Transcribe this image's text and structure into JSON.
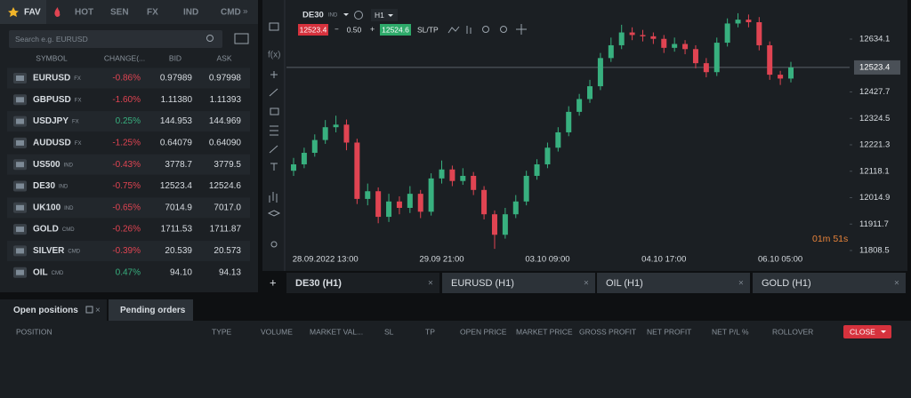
{
  "tabs": [
    "FAV",
    "HOT",
    "SEN",
    "FX",
    "IND",
    "CMD"
  ],
  "search_placeholder": "Search e.g. EURUSD",
  "watchlist": {
    "headers": [
      "SYMBOL",
      "CHANGE(...",
      "BID",
      "ASK"
    ],
    "rows": [
      {
        "symbol": "EURUSD",
        "kind": "FX",
        "change": "-0.86%",
        "bid": "0.97989",
        "ask": "0.97998"
      },
      {
        "symbol": "GBPUSD",
        "kind": "FX",
        "change": "-1.60%",
        "bid": "1.11380",
        "ask": "1.11393"
      },
      {
        "symbol": "USDJPY",
        "kind": "FX",
        "change": "0.25%",
        "bid": "144.953",
        "ask": "144.969"
      },
      {
        "symbol": "AUDUSD",
        "kind": "FX",
        "change": "-1.25%",
        "bid": "0.64079",
        "ask": "0.64090"
      },
      {
        "symbol": "US500",
        "kind": "IND",
        "change": "-0.43%",
        "bid": "3778.7",
        "ask": "3779.5"
      },
      {
        "symbol": "DE30",
        "kind": "IND",
        "change": "-0.75%",
        "bid": "12523.4",
        "ask": "12524.6"
      },
      {
        "symbol": "UK100",
        "kind": "IND",
        "change": "-0.65%",
        "bid": "7014.9",
        "ask": "7017.0"
      },
      {
        "symbol": "GOLD",
        "kind": "CMD",
        "change": "-0.26%",
        "bid": "1711.53",
        "ask": "1711.87"
      },
      {
        "symbol": "SILVER",
        "kind": "CMD",
        "change": "-0.39%",
        "bid": "20.539",
        "ask": "20.573"
      },
      {
        "symbol": "OIL",
        "kind": "CMD",
        "change": "0.47%",
        "bid": "94.10",
        "ask": "94.13"
      }
    ]
  },
  "instrument": {
    "symbol": "DE30",
    "kind": "IND",
    "timeframe": "H1",
    "sell": "12523.4",
    "lot": "0.50",
    "buy": "12524.6",
    "sltp": "SL/TP"
  },
  "chart_data": {
    "type": "candlestick",
    "x": [
      null,
      null,
      null,
      "28.09.2022 13:00",
      null,
      null,
      null,
      null,
      null,
      null,
      null,
      null,
      null,
      null,
      "29.09 21:00",
      null,
      null,
      null,
      null,
      null,
      null,
      null,
      null,
      null,
      "03.10 09:00",
      null,
      null,
      null,
      null,
      null,
      null,
      null,
      null,
      null,
      null,
      "04.10 17:00",
      null,
      null,
      null,
      null,
      null,
      null,
      null,
      null,
      null,
      null,
      "06.10 05:00",
      null
    ],
    "open": [
      12120,
      12145,
      12190,
      12240,
      12290,
      12300,
      12230,
      12010,
      12040,
      11940,
      12000,
      11975,
      12030,
      11960,
      12090,
      12125,
      12080,
      12100,
      12045,
      11950,
      11870,
      11950,
      12000,
      12100,
      12145,
      12210,
      12270,
      12350,
      12400,
      12450,
      12560,
      12610,
      12660,
      12650,
      12645,
      12635,
      12600,
      12615,
      12595,
      12540,
      12505,
      12620,
      12695,
      12710,
      12700,
      12610,
      12495,
      12480
    ],
    "high": [
      12170,
      12210,
      12262,
      12318,
      12335,
      12320,
      12245,
      12070,
      12055,
      12030,
      12020,
      12060,
      12045,
      12110,
      12160,
      12140,
      12130,
      12115,
      12060,
      11965,
      11975,
      12025,
      12120,
      12165,
      12230,
      12290,
      12372,
      12420,
      12475,
      12580,
      12640,
      12690,
      12680,
      12670,
      12660,
      12650,
      12640,
      12630,
      12610,
      12560,
      12640,
      12715,
      12735,
      12730,
      12720,
      12625,
      12510,
      12545
    ],
    "low": [
      12100,
      12130,
      12175,
      12225,
      12270,
      12200,
      11990,
      11985,
      11915,
      11920,
      11950,
      11955,
      11935,
      11945,
      12070,
      12060,
      12065,
      12025,
      11930,
      11815,
      11855,
      11935,
      11985,
      12085,
      12130,
      12195,
      12255,
      12335,
      12385,
      12435,
      12545,
      12595,
      12630,
      12625,
      12615,
      12580,
      12585,
      12575,
      12520,
      12485,
      12490,
      12605,
      12680,
      12680,
      12590,
      12475,
      12455,
      12465
    ],
    "close": [
      12145,
      12190,
      12240,
      12290,
      12300,
      12230,
      12010,
      12040,
      11940,
      12000,
      11975,
      12030,
      11960,
      12090,
      12125,
      12080,
      12100,
      12045,
      11950,
      11870,
      11950,
      12000,
      12100,
      12145,
      12210,
      12270,
      12350,
      12400,
      12450,
      12560,
      12610,
      12660,
      12650,
      12645,
      12635,
      12600,
      12615,
      12595,
      12540,
      12505,
      12620,
      12695,
      12710,
      12700,
      12610,
      12495,
      12480,
      12523.4
    ],
    "up_color": "#38b07f",
    "down_color": "#e04452",
    "ylim": [
      11746,
      12759
    ],
    "yticks": [
      12634.1,
      12427.7,
      12324.5,
      12221.3,
      12118.1,
      12014.9,
      11911.7,
      11808.5
    ],
    "last_price": 12523.4,
    "countdown": "01m 51s"
  },
  "chart_tabs": [
    "DE30 (H1)",
    "EURUSD (H1)",
    "OIL (H1)",
    "GOLD (H1)"
  ],
  "bottom_tabs": [
    "Open positions",
    "Pending orders"
  ],
  "columns": [
    "POSITION",
    "TYPE",
    "VOLUME",
    "MARKET VAL...",
    "SL",
    "TP",
    "OPEN PRICE",
    "MARKET PRICE",
    "GROSS PROFIT",
    "NET PROFIT",
    "NET P/L %",
    "ROLLOVER"
  ],
  "close_button": "CLOSE"
}
